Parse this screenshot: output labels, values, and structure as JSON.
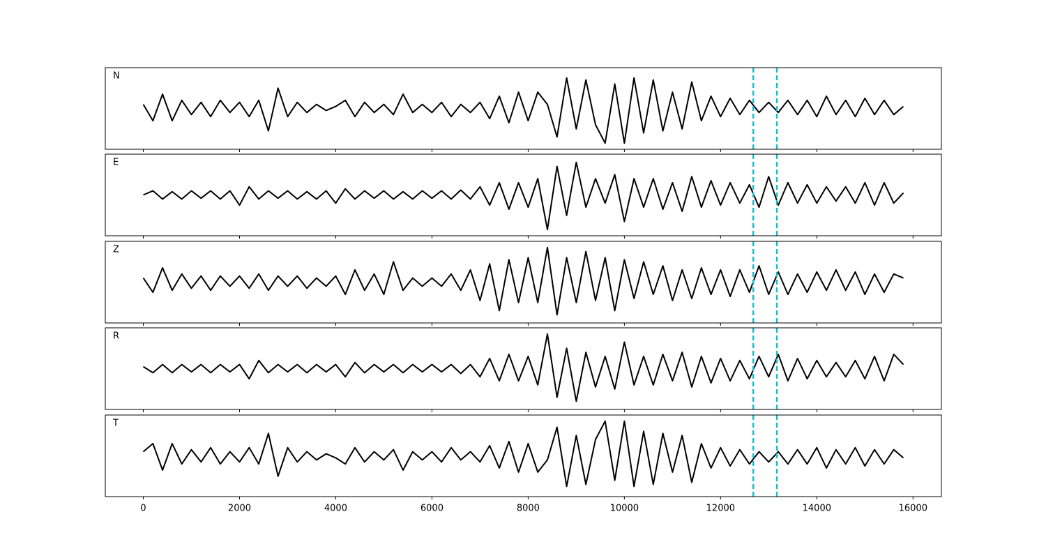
{
  "chart_data": [
    {
      "type": "line",
      "label": "N",
      "xlim": [
        -790,
        16590
      ],
      "ylim": [
        -1,
        1
      ],
      "xticks": [
        0,
        2000,
        4000,
        6000,
        8000,
        10000,
        12000,
        14000,
        16000
      ],
      "vlines": [
        12680,
        13170
      ],
      "vline_color": "#17becf",
      "x": [
        0,
        200,
        400,
        600,
        800,
        1000,
        1200,
        1400,
        1600,
        1800,
        2000,
        2200,
        2400,
        2600,
        2800,
        3000,
        3200,
        3400,
        3600,
        3800,
        4000,
        4200,
        4400,
        4600,
        4800,
        5000,
        5200,
        5400,
        5600,
        5800,
        6000,
        6200,
        6400,
        6600,
        6800,
        7000,
        7200,
        7400,
        7600,
        7800,
        8000,
        8200,
        8400,
        8600,
        8800,
        9000,
        9200,
        9400,
        9600,
        9800,
        10000,
        10200,
        10400,
        10600,
        10800,
        11000,
        11200,
        11400,
        11600,
        11800,
        12000,
        12200,
        12400,
        12600,
        12800,
        13000,
        13200,
        13400,
        13600,
        13800,
        14000,
        14200,
        14400,
        14600,
        14800,
        15000,
        15200,
        15400,
        15600,
        15800
      ],
      "series": [
        {
          "color": "#000000",
          "values": [
            0.1,
            -0.3,
            0.35,
            -0.3,
            0.2,
            -0.15,
            0.15,
            -0.2,
            0.2,
            -0.1,
            0.15,
            -0.2,
            0.2,
            -0.55,
            0.5,
            -0.2,
            0.15,
            -0.1,
            0.1,
            -0.05,
            0.05,
            0.2,
            -0.2,
            0.15,
            -0.1,
            0.1,
            -0.15,
            0.35,
            -0.1,
            0.1,
            -0.1,
            0.15,
            -0.2,
            0.1,
            -0.1,
            0.15,
            -0.25,
            0.3,
            -0.35,
            0.4,
            -0.3,
            0.4,
            0.1,
            -0.7,
            0.75,
            -0.5,
            0.7,
            -0.4,
            -0.85,
            0.6,
            -0.85,
            0.75,
            -0.6,
            0.7,
            -0.55,
            0.4,
            -0.5,
            0.65,
            -0.3,
            0.3,
            -0.2,
            0.25,
            -0.15,
            0.2,
            -0.1,
            0.15,
            -0.1,
            0.2,
            -0.15,
            0.2,
            -0.2,
            0.3,
            -0.15,
            0.2,
            -0.2,
            0.25,
            -0.15,
            0.2,
            -0.15,
            0.05
          ]
        }
      ]
    },
    {
      "type": "line",
      "label": "E",
      "xlim": [
        -790,
        16590
      ],
      "ylim": [
        -1,
        1
      ],
      "xticks": [
        0,
        2000,
        4000,
        6000,
        8000,
        10000,
        12000,
        14000,
        16000
      ],
      "vlines": [
        12680,
        13170
      ],
      "vline_color": "#17becf",
      "x": [
        0,
        200,
        400,
        600,
        800,
        1000,
        1200,
        1400,
        1600,
        1800,
        2000,
        2200,
        2400,
        2600,
        2800,
        3000,
        3200,
        3400,
        3600,
        3800,
        4000,
        4200,
        4400,
        4600,
        4800,
        5000,
        5200,
        5400,
        5600,
        5800,
        6000,
        6200,
        6400,
        6600,
        6800,
        7000,
        7200,
        7400,
        7600,
        7800,
        8000,
        8200,
        8400,
        8600,
        8800,
        9000,
        9200,
        9400,
        9600,
        9800,
        10000,
        10200,
        10400,
        10600,
        10800,
        11000,
        11200,
        11400,
        11600,
        11800,
        12000,
        12200,
        12400,
        12600,
        12800,
        13000,
        13200,
        13400,
        13600,
        13800,
        14000,
        14200,
        14400,
        14600,
        14800,
        15000,
        15200,
        15400,
        15600,
        15800
      ],
      "series": [
        {
          "color": "#000000",
          "values": [
            0.0,
            0.1,
            -0.1,
            0.08,
            -0.1,
            0.1,
            -0.08,
            0.1,
            -0.1,
            0.1,
            -0.25,
            0.2,
            -0.1,
            0.1,
            -0.08,
            0.1,
            -0.1,
            0.08,
            -0.1,
            0.1,
            -0.2,
            0.15,
            -0.1,
            0.1,
            -0.08,
            0.1,
            -0.1,
            0.08,
            -0.1,
            0.1,
            -0.08,
            0.1,
            -0.1,
            0.12,
            -0.1,
            0.2,
            -0.25,
            0.3,
            -0.35,
            0.3,
            -0.3,
            0.4,
            -0.85,
            0.7,
            -0.5,
            0.8,
            -0.3,
            0.4,
            -0.2,
            0.5,
            -0.65,
            0.4,
            -0.3,
            0.4,
            -0.35,
            0.3,
            -0.4,
            0.45,
            -0.3,
            0.35,
            -0.25,
            0.3,
            -0.2,
            0.25,
            -0.3,
            0.45,
            -0.25,
            0.3,
            -0.2,
            0.25,
            -0.2,
            0.2,
            -0.15,
            0.2,
            -0.2,
            0.3,
            -0.25,
            0.3,
            -0.2,
            0.05
          ]
        }
      ]
    },
    {
      "type": "line",
      "label": "Z",
      "xlim": [
        -790,
        16590
      ],
      "ylim": [
        -1,
        1
      ],
      "xticks": [
        0,
        2000,
        4000,
        6000,
        8000,
        10000,
        12000,
        14000,
        16000
      ],
      "vlines": [
        12680,
        13170
      ],
      "vline_color": "#17becf",
      "x": [
        0,
        200,
        400,
        600,
        800,
        1000,
        1200,
        1400,
        1600,
        1800,
        2000,
        2200,
        2400,
        2600,
        2800,
        3000,
        3200,
        3400,
        3600,
        3800,
        4000,
        4200,
        4400,
        4600,
        4800,
        5000,
        5200,
        5400,
        5600,
        5800,
        6000,
        6200,
        6400,
        6600,
        6800,
        7000,
        7200,
        7400,
        7600,
        7800,
        8000,
        8200,
        8400,
        8600,
        8800,
        9000,
        9200,
        9400,
        9600,
        9800,
        10000,
        10200,
        10400,
        10600,
        10800,
        11000,
        11200,
        11400,
        11600,
        11800,
        12000,
        12200,
        12400,
        12600,
        12800,
        13000,
        13200,
        13400,
        13600,
        13800,
        14000,
        14200,
        14400,
        14600,
        14800,
        15000,
        15200,
        15400,
        15600,
        15800
      ],
      "series": [
        {
          "color": "#000000",
          "values": [
            0.1,
            -0.25,
            0.35,
            -0.2,
            0.2,
            -0.15,
            0.15,
            -0.2,
            0.15,
            -0.1,
            0.15,
            -0.15,
            0.2,
            -0.2,
            0.15,
            -0.1,
            0.15,
            -0.15,
            0.1,
            -0.1,
            0.15,
            -0.3,
            0.3,
            -0.2,
            0.2,
            -0.3,
            0.5,
            -0.2,
            0.1,
            -0.1,
            0.1,
            -0.1,
            0.2,
            -0.2,
            0.3,
            -0.45,
            0.45,
            -0.7,
            0.55,
            -0.5,
            0.6,
            -0.5,
            0.85,
            -0.8,
            0.6,
            -0.5,
            0.75,
            -0.45,
            0.6,
            -0.7,
            0.55,
            -0.4,
            0.5,
            -0.3,
            0.4,
            -0.45,
            0.3,
            -0.4,
            0.35,
            -0.3,
            0.3,
            -0.35,
            0.3,
            -0.25,
            0.4,
            -0.3,
            0.25,
            -0.3,
            0.2,
            -0.25,
            0.25,
            -0.2,
            0.3,
            -0.2,
            0.25,
            -0.3,
            0.2,
            -0.25,
            0.2,
            0.1
          ]
        }
      ]
    },
    {
      "type": "line",
      "label": "R",
      "xlim": [
        -790,
        16590
      ],
      "ylim": [
        -1,
        1
      ],
      "xticks": [
        0,
        2000,
        4000,
        6000,
        8000,
        10000,
        12000,
        14000,
        16000
      ],
      "vlines": [
        12680,
        13170
      ],
      "vline_color": "#17becf",
      "x": [
        0,
        200,
        400,
        600,
        800,
        1000,
        1200,
        1400,
        1600,
        1800,
        2000,
        2200,
        2400,
        2600,
        2800,
        3000,
        3200,
        3400,
        3600,
        3800,
        4000,
        4200,
        4400,
        4600,
        4800,
        5000,
        5200,
        5400,
        5600,
        5800,
        6000,
        6200,
        6400,
        6600,
        6800,
        7000,
        7200,
        7400,
        7600,
        7800,
        8000,
        8200,
        8400,
        8600,
        8800,
        9000,
        9200,
        9400,
        9600,
        9800,
        10000,
        10200,
        10400,
        10600,
        10800,
        11000,
        11200,
        11400,
        11600,
        11800,
        12000,
        12200,
        12400,
        12600,
        12800,
        13000,
        13200,
        13400,
        13600,
        13800,
        14000,
        14200,
        14400,
        14600,
        14800,
        15000,
        15200,
        15400,
        15600,
        15800
      ],
      "series": [
        {
          "color": "#000000",
          "values": [
            0.05,
            -0.1,
            0.1,
            -0.1,
            0.1,
            -0.08,
            0.1,
            -0.1,
            0.1,
            -0.08,
            0.1,
            -0.25,
            0.2,
            -0.1,
            0.1,
            -0.08,
            0.1,
            -0.1,
            0.1,
            -0.08,
            0.1,
            -0.2,
            0.15,
            -0.1,
            0.1,
            -0.08,
            0.1,
            -0.1,
            0.1,
            -0.08,
            0.1,
            -0.08,
            0.1,
            -0.12,
            0.1,
            -0.2,
            0.25,
            -0.3,
            0.35,
            -0.3,
            0.3,
            -0.4,
            0.85,
            -0.7,
            0.5,
            -0.8,
            0.4,
            -0.45,
            0.3,
            -0.5,
            0.65,
            -0.4,
            0.3,
            -0.4,
            0.35,
            -0.3,
            0.4,
            -0.45,
            0.3,
            -0.35,
            0.25,
            -0.3,
            0.2,
            -0.25,
            0.3,
            -0.2,
            0.35,
            -0.3,
            0.25,
            -0.25,
            0.2,
            -0.2,
            0.15,
            -0.2,
            0.2,
            -0.25,
            0.3,
            -0.3,
            0.35,
            0.1
          ]
        }
      ]
    },
    {
      "type": "line",
      "label": "T",
      "xlim": [
        -790,
        16590
      ],
      "ylim": [
        -1,
        1
      ],
      "xticks": [
        0,
        2000,
        4000,
        6000,
        8000,
        10000,
        12000,
        14000,
        16000
      ],
      "vlines": [
        12680,
        13170
      ],
      "vline_color": "#17becf",
      "x": [
        0,
        200,
        400,
        600,
        800,
        1000,
        1200,
        1400,
        1600,
        1800,
        2000,
        2200,
        2400,
        2600,
        2800,
        3000,
        3200,
        3400,
        3600,
        3800,
        4000,
        4200,
        4400,
        4600,
        4800,
        5000,
        5200,
        5400,
        5600,
        5800,
        6000,
        6200,
        6400,
        6600,
        6800,
        7000,
        7200,
        7400,
        7600,
        7800,
        8000,
        8200,
        8400,
        8600,
        8800,
        9000,
        9200,
        9400,
        9600,
        9800,
        10000,
        10200,
        10400,
        10600,
        10800,
        11000,
        11200,
        11400,
        11600,
        11800,
        12000,
        12200,
        12400,
        12600,
        12800,
        13000,
        13200,
        13400,
        13600,
        13800,
        14000,
        14200,
        14400,
        14600,
        14800,
        15000,
        15200,
        15400,
        15600,
        15800
      ],
      "series": [
        {
          "color": "#000000",
          "values": [
            0.1,
            0.3,
            -0.35,
            0.3,
            -0.2,
            0.15,
            -0.15,
            0.2,
            -0.2,
            0.1,
            -0.15,
            0.2,
            -0.2,
            0.55,
            -0.5,
            0.2,
            -0.15,
            0.1,
            -0.1,
            0.05,
            -0.05,
            -0.2,
            0.2,
            -0.15,
            0.1,
            -0.1,
            0.15,
            -0.35,
            0.1,
            -0.1,
            0.1,
            -0.15,
            0.2,
            -0.1,
            0.1,
            -0.15,
            0.25,
            -0.3,
            0.35,
            -0.4,
            0.3,
            -0.4,
            -0.1,
            0.7,
            -0.75,
            0.5,
            -0.7,
            0.4,
            0.85,
            -0.6,
            0.85,
            -0.75,
            0.6,
            -0.7,
            0.55,
            -0.4,
            0.5,
            -0.65,
            0.3,
            -0.3,
            0.2,
            -0.25,
            0.15,
            -0.2,
            0.1,
            -0.15,
            0.1,
            -0.2,
            0.15,
            -0.2,
            0.2,
            -0.3,
            0.15,
            -0.2,
            0.2,
            -0.25,
            0.15,
            -0.2,
            0.15,
            -0.05
          ]
        }
      ]
    }
  ]
}
